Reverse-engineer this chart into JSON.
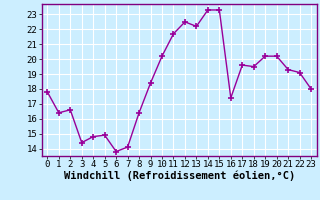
{
  "x": [
    0,
    1,
    2,
    3,
    4,
    5,
    6,
    7,
    8,
    9,
    10,
    11,
    12,
    13,
    14,
    15,
    16,
    17,
    18,
    19,
    20,
    21,
    22,
    23
  ],
  "y": [
    17.8,
    16.4,
    16.6,
    14.4,
    14.8,
    14.9,
    13.8,
    14.1,
    16.4,
    18.4,
    20.2,
    21.7,
    22.5,
    22.2,
    23.3,
    23.3,
    17.4,
    19.6,
    19.5,
    20.2,
    20.2,
    19.3,
    19.1,
    18.0
  ],
  "line_color": "#990099",
  "marker": "+",
  "markersize": 4,
  "linewidth": 1.0,
  "bg_color": "#cceeff",
  "grid_color": "#ffffff",
  "xlabel": "Windchill (Refroidissement éolien,°C)",
  "ylabel": "",
  "xlim": [
    -0.5,
    23.5
  ],
  "ylim": [
    13.5,
    23.7
  ],
  "yticks": [
    14,
    15,
    16,
    17,
    18,
    19,
    20,
    21,
    22,
    23
  ],
  "xticks": [
    0,
    1,
    2,
    3,
    4,
    5,
    6,
    7,
    8,
    9,
    10,
    11,
    12,
    13,
    14,
    15,
    16,
    17,
    18,
    19,
    20,
    21,
    22,
    23
  ],
  "xlabel_fontsize": 7.5,
  "tick_fontsize": 6.5,
  "markeredgewidth": 1.2
}
